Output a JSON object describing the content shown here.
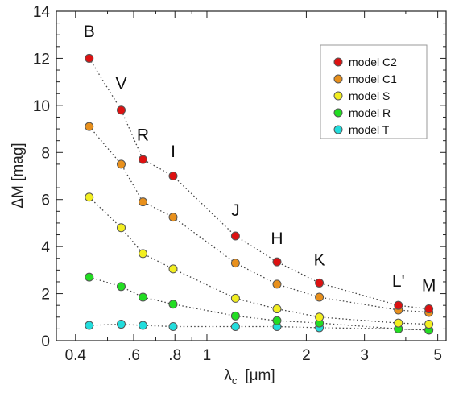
{
  "chart_data": {
    "type": "scatter",
    "xlabel": "λ",
    "xlabel_sub": "c",
    "xlabel_unit": "[μm]",
    "ylabel": "ΔM  [mag]",
    "xscale": "log",
    "xlim": [
      0.35,
      5.3
    ],
    "ylim": [
      0,
      14
    ],
    "grid": false,
    "legend_position": "top-right",
    "x_ticks": [
      {
        "value": 0.4,
        "label": "0.4"
      },
      {
        "value": 0.6,
        "label": ".6"
      },
      {
        "value": 0.8,
        "label": ".8"
      },
      {
        "value": 1,
        "label": "1"
      },
      {
        "value": 2,
        "label": "2"
      },
      {
        "value": 3,
        "label": "3"
      },
      {
        "value": 5,
        "label": "5"
      }
    ],
    "x_minor_ticks": [
      0.5,
      0.7,
      0.9,
      4
    ],
    "y_ticks": [
      0,
      2,
      4,
      6,
      8,
      10,
      12,
      14
    ],
    "bands": [
      {
        "label": "B",
        "x": 0.44,
        "label_y": 12.9
      },
      {
        "label": "V",
        "x": 0.55,
        "label_y": 10.7
      },
      {
        "label": "R",
        "x": 0.64,
        "label_y": 8.5
      },
      {
        "label": "I",
        "x": 0.79,
        "label_y": 7.8
      },
      {
        "label": "J",
        "x": 1.22,
        "label_y": 5.3
      },
      {
        "label": "H",
        "x": 1.63,
        "label_y": 4.1
      },
      {
        "label": "K",
        "x": 2.19,
        "label_y": 3.2
      },
      {
        "label": "L'",
        "x": 3.8,
        "label_y": 2.3
      },
      {
        "label": "M",
        "x": 4.7,
        "label_y": 2.1
      }
    ],
    "x": [
      0.44,
      0.55,
      0.64,
      0.79,
      1.22,
      1.63,
      2.19,
      3.8,
      4.7
    ],
    "series": [
      {
        "name": "model C2",
        "color": "#dd1111",
        "values": [
          12.0,
          9.8,
          7.7,
          7.0,
          4.45,
          3.35,
          2.45,
          1.5,
          1.35
        ]
      },
      {
        "name": "model C1",
        "color": "#e8901c",
        "values": [
          9.1,
          7.5,
          5.9,
          5.25,
          3.3,
          2.4,
          1.85,
          1.3,
          1.2
        ]
      },
      {
        "name": "model S",
        "color": "#f2ee20",
        "values": [
          6.1,
          4.8,
          3.7,
          3.05,
          1.8,
          1.35,
          1.0,
          0.75,
          0.7
        ]
      },
      {
        "name": "model R",
        "color": "#22dd22",
        "values": [
          2.7,
          2.3,
          1.85,
          1.55,
          1.05,
          0.85,
          0.75,
          0.5,
          0.45
        ]
      },
      {
        "name": "model T",
        "color": "#22dddd",
        "values": [
          0.65,
          0.7,
          0.65,
          0.6,
          0.6,
          0.6,
          0.55,
          0.5,
          0.45
        ]
      }
    ]
  }
}
